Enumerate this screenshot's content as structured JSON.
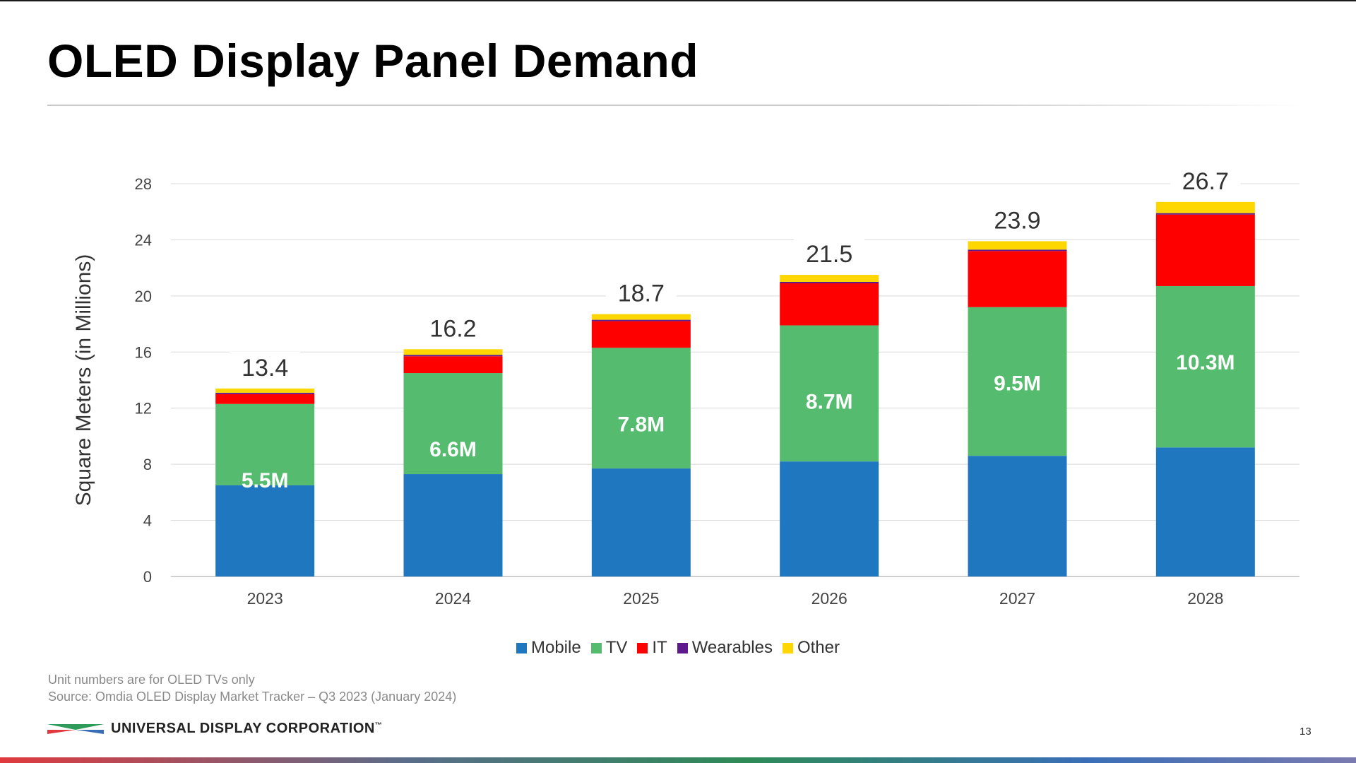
{
  "slide": {
    "title": "OLED Display Panel Demand",
    "footnote": "Unit numbers are for OLED TVs only",
    "source": "Source:  Omdia OLED Display Market Tracker – Q3 2023 (January 2024)",
    "company": "UNIVERSAL DISPLAY CORPORATION",
    "trademark": "™",
    "page_number": "13"
  },
  "colors": {
    "Mobile": "#1f77c0",
    "TV": "#55bb6e",
    "IT": "#ff0000",
    "Wearables": "#5c1a8c",
    "Other": "#ffd700"
  },
  "chart_data": {
    "type": "bar",
    "stacked": true,
    "title": "",
    "xlabel": "",
    "ylabel": "Square Meters (in Millions)",
    "ylim": [
      0,
      28
    ],
    "yticks": [
      0,
      4,
      8,
      12,
      16,
      20,
      24,
      28
    ],
    "grid": true,
    "legend_position": "bottom-center",
    "categories": [
      "2023",
      "2024",
      "2025",
      "2026",
      "2027",
      "2028"
    ],
    "series": [
      {
        "name": "Mobile",
        "values": [
          6.5,
          7.3,
          7.7,
          8.2,
          8.6,
          9.2
        ]
      },
      {
        "name": "TV",
        "values": [
          5.8,
          7.2,
          8.6,
          9.7,
          10.6,
          11.5
        ]
      },
      {
        "name": "IT",
        "values": [
          0.7,
          1.2,
          1.9,
          3.0,
          4.0,
          5.1
        ]
      },
      {
        "name": "Wearables",
        "values": [
          0.1,
          0.1,
          0.1,
          0.1,
          0.1,
          0.1
        ]
      },
      {
        "name": "Other",
        "values": [
          0.3,
          0.4,
          0.4,
          0.5,
          0.6,
          0.8
        ]
      }
    ],
    "totals": [
      "13.4",
      "16.2",
      "18.7",
      "21.5",
      "23.9",
      "26.7"
    ],
    "tv_unit_labels": [
      "5.5M",
      "6.6M",
      "7.8M",
      "8.7M",
      "9.5M",
      "10.3M"
    ]
  }
}
